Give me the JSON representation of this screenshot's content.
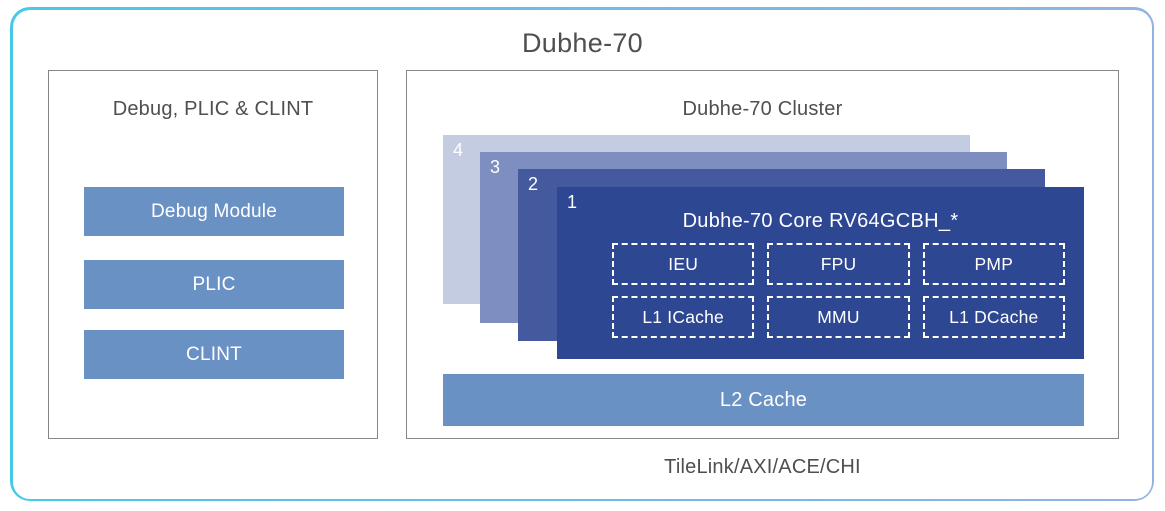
{
  "page": {
    "title": "Dubhe-70",
    "bus_label": "TileLink/AXI/ACE/CHI"
  },
  "colors": {
    "frame_gradient_start": "#48c8e8",
    "frame_gradient_end": "#93b2e3",
    "panel_border": "#868686",
    "heading_text": "#4f4f4f",
    "block_blue": "#6a91c3",
    "layer1_navy": "#2e4793",
    "layer2_blue": "#45599f",
    "layer3_blue": "#7f8ec0",
    "layer4_blue": "#c3cce0",
    "white": "#ffffff"
  },
  "left_panel": {
    "title": "Debug, PLIC & CLINT",
    "blocks": [
      {
        "label": "Debug Module"
      },
      {
        "label": "PLIC"
      },
      {
        "label": "CLINT"
      }
    ]
  },
  "cluster_panel": {
    "title": "Dubhe-70 Cluster",
    "layers": [
      {
        "label": "4"
      },
      {
        "label": "3"
      },
      {
        "label": "2"
      },
      {
        "label": "1"
      }
    ],
    "core": {
      "title": "Dubhe-70 Core RV64GCBH_*",
      "units": [
        {
          "label": "IEU"
        },
        {
          "label": "FPU"
        },
        {
          "label": "PMP"
        },
        {
          "label": "L1 ICache"
        },
        {
          "label": "MMU"
        },
        {
          "label": "L1 DCache"
        }
      ]
    },
    "l2_cache_label": "L2 Cache"
  }
}
